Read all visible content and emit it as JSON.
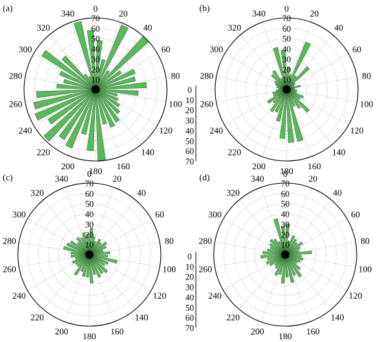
{
  "chart_data": {
    "type": "polar-bar",
    "panels": [
      {
        "label": "(a)",
        "angle_ticks": [
          "0",
          "20",
          "40",
          "60",
          "80",
          "100",
          "120",
          "140",
          "160",
          "180",
          "200",
          "220",
          "240",
          "260",
          "280",
          "300",
          "320",
          "340"
        ],
        "radial_ticks": [
          "0",
          "10",
          "20",
          "30",
          "40",
          "50",
          "60",
          "70"
        ],
        "rmax": 70,
        "bin_width_deg": 10,
        "bins_deg": [
          0,
          10,
          20,
          30,
          40,
          50,
          60,
          70,
          80,
          90,
          100,
          110,
          120,
          130,
          140,
          150,
          160,
          170,
          180,
          190,
          200,
          210,
          220,
          230,
          240,
          250,
          260,
          270,
          280,
          290,
          300,
          310,
          320,
          330,
          340,
          350
        ],
        "values": [
          48,
          30,
          68,
          22,
          70,
          30,
          42,
          40,
          50,
          42,
          22,
          24,
          28,
          32,
          38,
          40,
          35,
          70,
          60,
          45,
          62,
          58,
          68,
          55,
          64,
          62,
          58,
          38,
          32,
          38,
          62,
          44,
          18,
          14,
          68,
          58
        ]
      },
      {
        "label": "(b)",
        "angle_ticks": [
          "0",
          "20",
          "40",
          "60",
          "80",
          "100",
          "120",
          "140",
          "160",
          "180",
          "200",
          "220",
          "240",
          "260",
          "280",
          "300",
          "320",
          "340"
        ],
        "radial_ticks": [
          "0",
          "10",
          "20",
          "30",
          "40",
          "50",
          "60",
          "70"
        ],
        "rmax": 70,
        "bin_width_deg": 10,
        "bins_deg": [
          0,
          10,
          20,
          30,
          40,
          50,
          60,
          70,
          80,
          90,
          100,
          110,
          120,
          130,
          140,
          150,
          160,
          170,
          180,
          190,
          200,
          210,
          220,
          230,
          240,
          250,
          260,
          270,
          280,
          290,
          300,
          310,
          320,
          330,
          340,
          350
        ],
        "values": [
          22,
          15,
          50,
          16,
          30,
          10,
          8,
          14,
          8,
          10,
          10,
          18,
          16,
          30,
          22,
          18,
          52,
          52,
          48,
          32,
          24,
          26,
          18,
          22,
          14,
          14,
          10,
          8,
          10,
          12,
          14,
          20,
          22,
          12,
          42,
          38
        ]
      },
      {
        "label": "(c)",
        "angle_ticks": [
          "0",
          "20",
          "40",
          "60",
          "80",
          "100",
          "120",
          "140",
          "160",
          "180",
          "200",
          "220",
          "240",
          "260",
          "280",
          "300",
          "320",
          "340"
        ],
        "radial_ticks": [
          "0",
          "10",
          "20",
          "30",
          "40",
          "50",
          "60",
          "70"
        ],
        "rmax": 70,
        "bin_width_deg": 10,
        "bins_deg": [
          0,
          10,
          20,
          30,
          40,
          50,
          60,
          70,
          80,
          90,
          100,
          110,
          120,
          130,
          140,
          150,
          160,
          170,
          180,
          190,
          200,
          210,
          220,
          230,
          240,
          250,
          260,
          270,
          280,
          290,
          300,
          310,
          320,
          330,
          340,
          350
        ],
        "values": [
          26,
          18,
          14,
          18,
          16,
          20,
          18,
          14,
          20,
          18,
          28,
          20,
          18,
          24,
          22,
          24,
          20,
          28,
          22,
          22,
          18,
          24,
          16,
          16,
          18,
          14,
          18,
          18,
          26,
          24,
          22,
          16,
          20,
          18,
          22,
          20
        ]
      },
      {
        "label": "(d)",
        "angle_ticks": [
          "0",
          "20",
          "40",
          "60",
          "80",
          "100",
          "120",
          "140",
          "160",
          "180",
          "200",
          "220",
          "240",
          "260",
          "280",
          "300",
          "320",
          "340"
        ],
        "radial_ticks": [
          "0",
          "10",
          "20",
          "30",
          "40",
          "50",
          "60",
          "70"
        ],
        "rmax": 70,
        "bin_width_deg": 10,
        "bins_deg": [
          0,
          10,
          20,
          30,
          40,
          50,
          60,
          70,
          80,
          90,
          100,
          110,
          120,
          130,
          140,
          150,
          160,
          170,
          180,
          190,
          200,
          210,
          220,
          230,
          240,
          250,
          260,
          270,
          280,
          290,
          300,
          310,
          320,
          330,
          340,
          350
        ],
        "values": [
          30,
          14,
          20,
          18,
          16,
          20,
          16,
          14,
          26,
          16,
          18,
          16,
          14,
          20,
          26,
          22,
          28,
          22,
          28,
          20,
          22,
          16,
          14,
          18,
          20,
          18,
          24,
          22,
          18,
          16,
          18,
          20,
          18,
          14,
          36,
          28
        ]
      }
    ],
    "shared_radial_scale": {
      "ticks": [
        "0",
        "10",
        "20",
        "30",
        "40",
        "50",
        "60",
        "70"
      ]
    }
  }
}
